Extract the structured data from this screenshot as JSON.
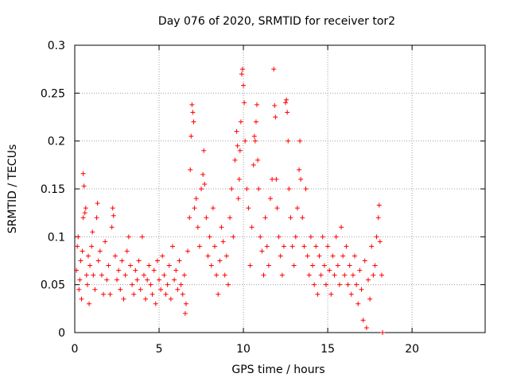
{
  "chart_data": {
    "type": "scatter",
    "title": "Day 076 of 2020, SRMTID for receiver tor2",
    "xlabel": "GPS time / hours",
    "ylabel": "SRMTID / TECUs",
    "xlim": [
      0,
      24.333
    ],
    "ylim": [
      0,
      0.3
    ],
    "xticks": [
      0,
      5,
      10,
      15,
      20
    ],
    "xtick_labels": [
      "0",
      "5",
      "10",
      "15",
      "20"
    ],
    "yticks": [
      0,
      0.05,
      0.1,
      0.15,
      0.2,
      0.25,
      0.3
    ],
    "ytick_labels": [
      "0",
      "0.05",
      "0.1",
      "0.15",
      "0.2",
      "0.25",
      "0.3"
    ],
    "grid": true,
    "marker": "+",
    "marker_color": "#ff0000",
    "series": [
      {
        "name": "SRMTID",
        "points": [
          [
            0.1,
            0.065
          ],
          [
            0.15,
            0.09
          ],
          [
            0.2,
            0.1
          ],
          [
            0.25,
            0.045
          ],
          [
            0.3,
            0.055
          ],
          [
            0.35,
            0.075
          ],
          [
            0.4,
            0.035
          ],
          [
            0.45,
            0.085
          ],
          [
            0.5,
            0.12
          ],
          [
            0.5,
            0.166
          ],
          [
            0.55,
            0.153
          ],
          [
            0.6,
            0.125
          ],
          [
            0.65,
            0.13
          ],
          [
            0.7,
            0.06
          ],
          [
            0.75,
            0.05
          ],
          [
            0.8,
            0.08
          ],
          [
            0.85,
            0.03
          ],
          [
            0.9,
            0.07
          ],
          [
            1.0,
            0.09
          ],
          [
            1.05,
            0.105
          ],
          [
            1.1,
            0.06
          ],
          [
            1.2,
            0.045
          ],
          [
            1.3,
            0.12
          ],
          [
            1.35,
            0.135
          ],
          [
            1.4,
            0.075
          ],
          [
            1.5,
            0.085
          ],
          [
            1.6,
            0.06
          ],
          [
            1.7,
            0.04
          ],
          [
            1.8,
            0.095
          ],
          [
            1.9,
            0.055
          ],
          [
            2.0,
            0.07
          ],
          [
            2.1,
            0.04
          ],
          [
            2.2,
            0.11
          ],
          [
            2.25,
            0.13
          ],
          [
            2.3,
            0.122
          ],
          [
            2.4,
            0.08
          ],
          [
            2.5,
            0.055
          ],
          [
            2.6,
            0.065
          ],
          [
            2.7,
            0.045
          ],
          [
            2.8,
            0.075
          ],
          [
            2.9,
            0.035
          ],
          [
            3.0,
            0.06
          ],
          [
            3.1,
            0.085
          ],
          [
            3.2,
            0.1
          ],
          [
            3.3,
            0.07
          ],
          [
            3.4,
            0.05
          ],
          [
            3.5,
            0.04
          ],
          [
            3.6,
            0.065
          ],
          [
            3.7,
            0.055
          ],
          [
            3.8,
            0.075
          ],
          [
            3.9,
            0.045
          ],
          [
            4.0,
            0.1
          ],
          [
            4.1,
            0.06
          ],
          [
            4.2,
            0.035
          ],
          [
            4.3,
            0.055
          ],
          [
            4.4,
            0.07
          ],
          [
            4.5,
            0.05
          ],
          [
            4.6,
            0.04
          ],
          [
            4.7,
            0.065
          ],
          [
            4.8,
            0.03
          ],
          [
            4.9,
            0.075
          ],
          [
            5.0,
            0.055
          ],
          [
            5.1,
            0.045
          ],
          [
            5.2,
            0.08
          ],
          [
            5.3,
            0.06
          ],
          [
            5.4,
            0.04
          ],
          [
            5.5,
            0.05
          ],
          [
            5.6,
            0.07
          ],
          [
            5.7,
            0.035
          ],
          [
            5.8,
            0.09
          ],
          [
            5.9,
            0.055
          ],
          [
            6.0,
            0.065
          ],
          [
            6.1,
            0.045
          ],
          [
            6.2,
            0.075
          ],
          [
            6.3,
            0.05
          ],
          [
            6.4,
            0.04
          ],
          [
            6.5,
            0.06
          ],
          [
            6.55,
            0.02
          ],
          [
            6.6,
            0.03
          ],
          [
            6.7,
            0.085
          ],
          [
            6.8,
            0.12
          ],
          [
            6.85,
            0.17
          ],
          [
            6.9,
            0.205
          ],
          [
            6.95,
            0.238
          ],
          [
            7.0,
            0.23
          ],
          [
            7.05,
            0.22
          ],
          [
            7.1,
            0.13
          ],
          [
            7.2,
            0.14
          ],
          [
            7.3,
            0.11
          ],
          [
            7.4,
            0.09
          ],
          [
            7.5,
            0.15
          ],
          [
            7.6,
            0.165
          ],
          [
            7.65,
            0.19
          ],
          [
            7.7,
            0.155
          ],
          [
            7.8,
            0.12
          ],
          [
            7.9,
            0.08
          ],
          [
            8.0,
            0.1
          ],
          [
            8.1,
            0.07
          ],
          [
            8.2,
            0.13
          ],
          [
            8.3,
            0.09
          ],
          [
            8.4,
            0.06
          ],
          [
            8.5,
            0.04
          ],
          [
            8.6,
            0.075
          ],
          [
            8.7,
            0.11
          ],
          [
            8.8,
            0.095
          ],
          [
            8.9,
            0.06
          ],
          [
            9.0,
            0.08
          ],
          [
            9.1,
            0.05
          ],
          [
            9.2,
            0.12
          ],
          [
            9.3,
            0.15
          ],
          [
            9.4,
            0.1
          ],
          [
            9.5,
            0.18
          ],
          [
            9.6,
            0.21
          ],
          [
            9.65,
            0.195
          ],
          [
            9.7,
            0.14
          ],
          [
            9.75,
            0.16
          ],
          [
            9.8,
            0.19
          ],
          [
            9.85,
            0.22
          ],
          [
            9.9,
            0.27
          ],
          [
            9.95,
            0.275
          ],
          [
            10.0,
            0.258
          ],
          [
            10.05,
            0.24
          ],
          [
            10.1,
            0.2
          ],
          [
            10.2,
            0.15
          ],
          [
            10.3,
            0.13
          ],
          [
            10.4,
            0.07
          ],
          [
            10.5,
            0.11
          ],
          [
            10.6,
            0.175
          ],
          [
            10.65,
            0.205
          ],
          [
            10.7,
            0.2
          ],
          [
            10.75,
            0.22
          ],
          [
            10.8,
            0.238
          ],
          [
            10.85,
            0.18
          ],
          [
            10.9,
            0.15
          ],
          [
            11.0,
            0.1
          ],
          [
            11.1,
            0.085
          ],
          [
            11.2,
            0.06
          ],
          [
            11.3,
            0.12
          ],
          [
            11.4,
            0.09
          ],
          [
            11.5,
            0.07
          ],
          [
            11.6,
            0.14
          ],
          [
            11.7,
            0.16
          ],
          [
            11.8,
            0.275
          ],
          [
            11.85,
            0.237
          ],
          [
            11.9,
            0.225
          ],
          [
            11.95,
            0.16
          ],
          [
            12.0,
            0.13
          ],
          [
            12.1,
            0.1
          ],
          [
            12.2,
            0.08
          ],
          [
            12.3,
            0.06
          ],
          [
            12.4,
            0.09
          ],
          [
            12.5,
            0.24
          ],
          [
            12.55,
            0.243
          ],
          [
            12.6,
            0.23
          ],
          [
            12.65,
            0.2
          ],
          [
            12.7,
            0.15
          ],
          [
            12.8,
            0.12
          ],
          [
            12.9,
            0.09
          ],
          [
            13.0,
            0.07
          ],
          [
            13.1,
            0.1
          ],
          [
            13.2,
            0.13
          ],
          [
            13.3,
            0.17
          ],
          [
            13.35,
            0.2
          ],
          [
            13.4,
            0.16
          ],
          [
            13.5,
            0.12
          ],
          [
            13.6,
            0.09
          ],
          [
            13.7,
            0.15
          ],
          [
            13.8,
            0.08
          ],
          [
            13.9,
            0.06
          ],
          [
            14.0,
            0.1
          ],
          [
            14.1,
            0.07
          ],
          [
            14.2,
            0.05
          ],
          [
            14.3,
            0.09
          ],
          [
            14.4,
            0.04
          ],
          [
            14.5,
            0.08
          ],
          [
            14.6,
            0.06
          ],
          [
            14.7,
            0.1
          ],
          [
            14.8,
            0.07
          ],
          [
            14.9,
            0.05
          ],
          [
            15.0,
            0.09
          ],
          [
            15.1,
            0.065
          ],
          [
            15.2,
            0.04
          ],
          [
            15.3,
            0.08
          ],
          [
            15.4,
            0.06
          ],
          [
            15.5,
            0.1
          ],
          [
            15.6,
            0.07
          ],
          [
            15.7,
            0.05
          ],
          [
            15.8,
            0.11
          ],
          [
            15.9,
            0.08
          ],
          [
            16.0,
            0.06
          ],
          [
            16.1,
            0.09
          ],
          [
            16.2,
            0.05
          ],
          [
            16.3,
            0.07
          ],
          [
            16.4,
            0.04
          ],
          [
            16.5,
            0.06
          ],
          [
            16.6,
            0.08
          ],
          [
            16.7,
            0.05
          ],
          [
            16.8,
            0.03
          ],
          [
            16.9,
            0.065
          ],
          [
            17.0,
            0.045
          ],
          [
            17.1,
            0.013
          ],
          [
            17.2,
            0.075
          ],
          [
            17.3,
            0.005
          ],
          [
            17.4,
            0.055
          ],
          [
            17.5,
            0.035
          ],
          [
            17.6,
            0.09
          ],
          [
            17.7,
            0.06
          ],
          [
            17.8,
            0.07
          ],
          [
            17.9,
            0.1
          ],
          [
            18.0,
            0.12
          ],
          [
            18.05,
            0.133
          ],
          [
            18.1,
            0.095
          ],
          [
            18.2,
            0.06
          ],
          [
            18.25,
            0.0
          ]
        ]
      }
    ]
  }
}
